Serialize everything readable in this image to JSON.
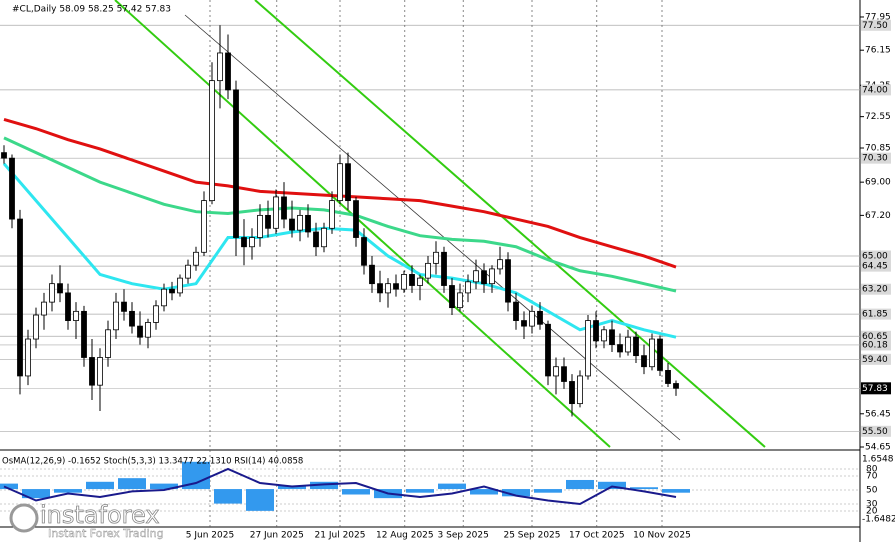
{
  "chart_data": {
    "type": "candlestick",
    "title": "#CL,Daily  58.09 58.25 57.42 57.83",
    "ylim": [
      54.65,
      78.87
    ],
    "yticks": [
      77.95,
      76.15,
      74.25,
      72.55,
      70.85,
      {
        "value": 69,
        "label": "69.00"
      },
      {
        "value": 67.2,
        "label": "67.20"
      },
      56.45,
      54.65
    ],
    "levels": [
      {
        "value": 77.5,
        "label": "77.50"
      },
      {
        "value": 74,
        "label": "74.00"
      },
      {
        "value": 70.3,
        "label": "70.30"
      },
      {
        "value": 65,
        "label": "65.00"
      },
      64.45,
      {
        "value": 63.2,
        "label": "63.20"
      },
      61.85,
      60.65,
      60.18,
      {
        "value": 59.4,
        "label": "59.40"
      },
      {
        "value": 55.5,
        "label": "55.50"
      }
    ],
    "last": 57.83,
    "xticks": [
      {
        "value": 25.75,
        "label": "5 Jun 2025"
      },
      {
        "value": 34.1,
        "label": "27 Jun 2025"
      },
      {
        "value": 42,
        "label": "21 Jul 2025"
      },
      {
        "value": 50.1,
        "label": "12 Aug 2025"
      },
      {
        "value": 57.4,
        "label": "3 Sep 2025"
      },
      {
        "value": 66,
        "label": "25 Sep 2025"
      },
      {
        "value": 74.1,
        "label": "17 Oct 2025"
      },
      {
        "value": 82.25,
        "label": "10 Nov 2025"
      }
    ],
    "candles": [
      [
        70.6,
        71.0,
        70.0,
        70.3
      ],
      [
        70.3,
        70.5,
        66.5,
        67.0
      ],
      [
        67.0,
        67.5,
        57.5,
        58.5
      ],
      [
        58.5,
        61.0,
        58.0,
        60.5
      ],
      [
        60.5,
        62.2,
        60.0,
        61.8
      ],
      [
        61.8,
        63.0,
        61.0,
        62.5
      ],
      [
        62.5,
        64.0,
        62.0,
        63.5
      ],
      [
        63.5,
        64.5,
        62.5,
        63.0
      ],
      [
        63.0,
        63.5,
        61.0,
        61.5
      ],
      [
        61.5,
        62.5,
        60.5,
        62.0
      ],
      [
        62.0,
        62.3,
        59.0,
        59.5
      ],
      [
        59.5,
        60.5,
        57.2,
        58.0
      ],
      [
        58.0,
        60.0,
        56.6,
        59.5
      ],
      [
        59.5,
        61.5,
        59.0,
        61.0
      ],
      [
        61.0,
        63.0,
        60.5,
        62.5
      ],
      [
        62.5,
        63.2,
        61.5,
        62.0
      ],
      [
        62.0,
        62.5,
        60.8,
        61.2
      ],
      [
        61.2,
        62.0,
        60.2,
        60.6
      ],
      [
        60.6,
        61.6,
        60.0,
        61.4
      ],
      [
        61.4,
        62.6,
        61.0,
        62.3
      ],
      [
        62.3,
        63.5,
        62.0,
        63.2
      ],
      [
        63.2,
        63.6,
        62.6,
        63.0
      ],
      [
        63.0,
        64.0,
        62.8,
        63.8
      ],
      [
        63.8,
        64.8,
        63.5,
        64.5
      ],
      [
        64.5,
        65.5,
        64.2,
        65.2
      ],
      [
        65.2,
        68.5,
        65.0,
        68.0
      ],
      [
        68.0,
        75.5,
        67.8,
        74.5
      ],
      [
        74.5,
        77.5,
        73.0,
        76.0
      ],
      [
        76.0,
        77.0,
        73.5,
        74.0
      ],
      [
        74.0,
        74.5,
        65.0,
        66.0
      ],
      [
        66.0,
        67.0,
        64.5,
        65.5
      ],
      [
        65.5,
        66.5,
        64.8,
        66.0
      ],
      [
        66.0,
        67.8,
        65.5,
        67.2
      ],
      [
        67.2,
        68.0,
        66.0,
        66.5
      ],
      [
        66.5,
        68.6,
        66.2,
        68.2
      ],
      [
        68.2,
        69.0,
        66.5,
        67.0
      ],
      [
        67.0,
        68.0,
        66.0,
        66.4
      ],
      [
        66.4,
        67.5,
        65.8,
        67.2
      ],
      [
        67.2,
        67.8,
        66.0,
        66.3
      ],
      [
        66.3,
        66.8,
        65.0,
        65.5
      ],
      [
        65.5,
        66.8,
        65.2,
        66.5
      ],
      [
        66.5,
        68.5,
        66.2,
        68.0
      ],
      [
        68.0,
        70.5,
        67.8,
        70.0
      ],
      [
        70.0,
        70.6,
        67.5,
        68.0
      ],
      [
        68.0,
        68.2,
        65.5,
        66.0
      ],
      [
        66.0,
        66.5,
        64.0,
        64.5
      ],
      [
        64.5,
        65.0,
        63.0,
        63.5
      ],
      [
        63.5,
        64.2,
        62.5,
        63.0
      ],
      [
        63.0,
        63.8,
        62.2,
        63.5
      ],
      [
        63.5,
        64.0,
        62.8,
        63.2
      ],
      [
        63.2,
        64.2,
        63.0,
        64.0
      ],
      [
        64.0,
        64.5,
        63.0,
        63.4
      ],
      [
        63.4,
        64.0,
        62.6,
        63.8
      ],
      [
        63.8,
        65.0,
        63.5,
        64.6
      ],
      [
        64.6,
        65.8,
        64.0,
        65.2
      ],
      [
        65.2,
        65.5,
        63.0,
        63.4
      ],
      [
        63.4,
        63.8,
        61.8,
        62.2
      ],
      [
        62.2,
        63.5,
        62.0,
        63.0
      ],
      [
        63.0,
        64.0,
        62.5,
        63.6
      ],
      [
        63.6,
        64.8,
        63.2,
        64.2
      ],
      [
        64.2,
        64.6,
        63.0,
        63.5
      ],
      [
        63.5,
        64.5,
        63.0,
        64.3
      ],
      [
        64.3,
        65.5,
        64.0,
        64.8
      ],
      [
        64.8,
        65.2,
        62.0,
        62.5
      ],
      [
        62.5,
        63.0,
        61.0,
        61.5
      ],
      [
        61.5,
        62.0,
        60.5,
        61.2
      ],
      [
        61.2,
        62.3,
        60.8,
        62.0
      ],
      [
        62.0,
        62.5,
        61.0,
        61.3
      ],
      [
        61.3,
        61.5,
        58.0,
        58.5
      ],
      [
        58.5,
        59.5,
        57.5,
        59.0
      ],
      [
        59.0,
        59.5,
        57.8,
        58.2
      ],
      [
        58.2,
        58.6,
        56.3,
        57.0
      ],
      [
        57.0,
        58.8,
        56.8,
        58.5
      ],
      [
        58.5,
        61.8,
        58.3,
        61.5
      ],
      [
        61.5,
        62.0,
        60.0,
        60.4
      ],
      [
        60.4,
        61.2,
        60.0,
        61.0
      ],
      [
        61.0,
        61.5,
        59.8,
        60.2
      ],
      [
        60.2,
        60.8,
        59.5,
        59.8
      ],
      [
        59.8,
        61.0,
        59.6,
        60.6
      ],
      [
        60.6,
        60.9,
        59.2,
        59.6
      ],
      [
        59.6,
        60.2,
        58.6,
        59.0
      ],
      [
        59.0,
        60.8,
        58.8,
        60.5
      ],
      [
        60.5,
        60.7,
        58.5,
        58.8
      ],
      [
        58.8,
        59.2,
        57.9,
        58.09
      ],
      [
        58.09,
        58.25,
        57.42,
        57.83
      ]
    ],
    "ma_x": [
      0,
      4,
      8,
      12,
      16,
      20,
      24,
      28,
      32,
      36,
      40,
      44,
      48,
      52,
      56,
      60,
      64,
      68,
      72,
      76,
      80,
      84
    ],
    "series": [
      {
        "color": "#e01010",
        "values": [
          72.4,
          71.9,
          71.3,
          70.8,
          70.2,
          69.6,
          69.0,
          68.8,
          68.5,
          68.4,
          68.3,
          68.2,
          68.1,
          68.0,
          67.7,
          67.4,
          67.0,
          66.6,
          66.0,
          65.5,
          65.0,
          64.4
        ]
      },
      {
        "color": "#3cd88a",
        "values": [
          71.4,
          70.6,
          69.8,
          69.0,
          68.4,
          67.8,
          67.4,
          67.3,
          67.5,
          67.6,
          67.5,
          67.2,
          66.6,
          66.1,
          65.9,
          65.8,
          65.5,
          64.8,
          64.2,
          63.9,
          63.5,
          63.1
        ]
      },
      {
        "color": "#2ee6f0",
        "values": [
          70.0,
          68.0,
          66.0,
          64.0,
          63.5,
          63.2,
          63.5,
          66.0,
          66.0,
          66.3,
          66.5,
          66.4,
          65.0,
          64.0,
          63.8,
          63.5,
          63.0,
          62.0,
          61.0,
          61.5,
          61.0,
          60.6
        ]
      }
    ],
    "indicator": {
      "title": "OsMA(12,26,9) -0.1652  Stoch(5,3,3) 13.3477 22.1310  RSI(14) 40.0858",
      "osma_ylim": [
        -1.6482,
        1.6548
      ],
      "osma_ticks": [
        1.6548,
        -1.6482
      ],
      "ylim": [
        0,
        100
      ],
      "levels": [
        80,
        70,
        50,
        30,
        20
      ],
      "osma": [
        0.3,
        -0.5,
        -0.2,
        0.4,
        0.6,
        0.3,
        1.5,
        -0.8,
        -1.2,
        0.2,
        0.4,
        -0.3,
        -0.5,
        -0.2,
        0.3,
        -0.3,
        -0.4,
        -0.2,
        0.5,
        0.4,
        0.1,
        -0.2
      ],
      "rsi": [
        55,
        35,
        45,
        40,
        48,
        50,
        60,
        80,
        60,
        55,
        58,
        60,
        45,
        40,
        45,
        55,
        42,
        35,
        30,
        55,
        48,
        40
      ]
    },
    "logo": {
      "name": "instaforex",
      "tagline": "Instant Forex Trading"
    }
  }
}
